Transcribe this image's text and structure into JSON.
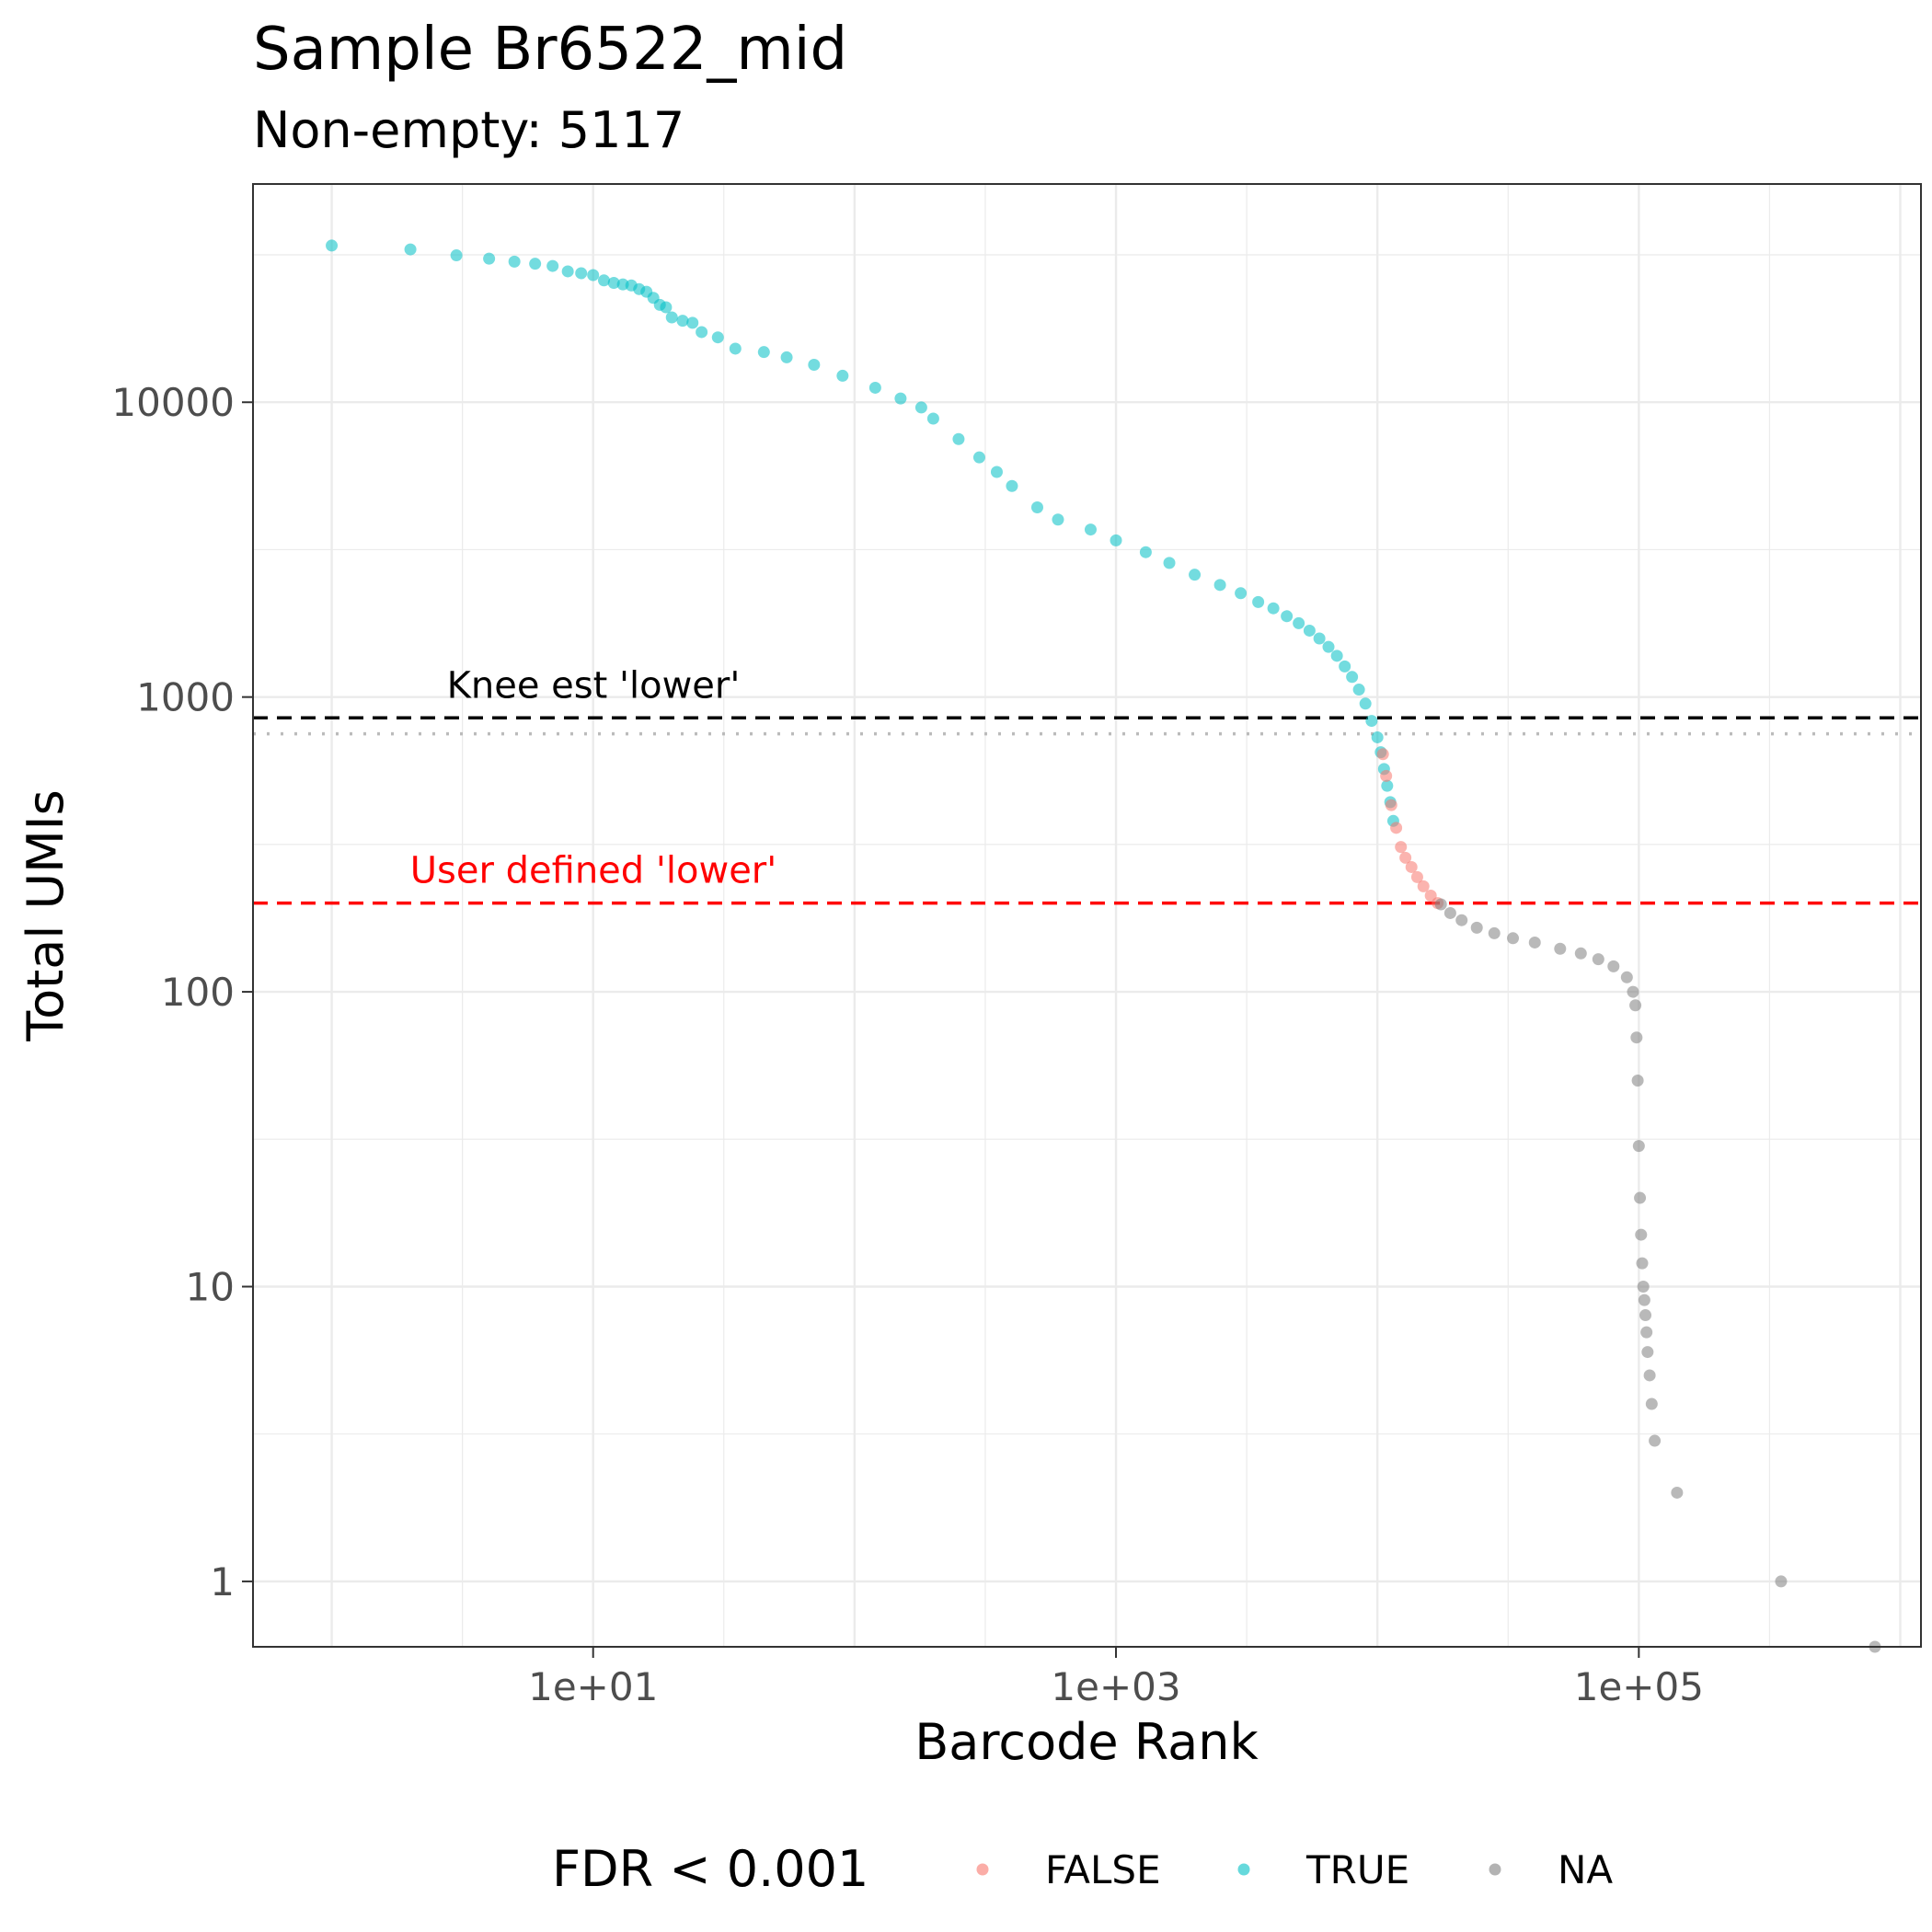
{
  "chart_data": {
    "type": "scatter",
    "title": "Sample Br6522_mid",
    "subtitle": "Non-empty: 5117",
    "xlabel": "Barcode Rank",
    "ylabel": "Total UMIs",
    "x_scale": "log10",
    "y_scale": "log10",
    "xlim": [
      0.5,
      1200000
    ],
    "ylim": [
      0.6,
      55000
    ],
    "x_ticks": [
      {
        "value": 10,
        "label": "1e+01"
      },
      {
        "value": 1000,
        "label": "1e+03"
      },
      {
        "value": 100000,
        "label": "1e+05"
      }
    ],
    "y_ticks": [
      {
        "value": 1,
        "label": "1"
      },
      {
        "value": 10,
        "label": "10"
      },
      {
        "value": 100,
        "label": "100"
      },
      {
        "value": 1000,
        "label": "1000"
      },
      {
        "value": 10000,
        "label": "10000"
      }
    ],
    "grid": true,
    "legend": {
      "title": "FDR < 0.001",
      "position": "bottom",
      "entries": [
        {
          "label": "FALSE",
          "color": "#F8766D"
        },
        {
          "label": "TRUE",
          "color": "#00BFC4"
        },
        {
          "label": "NA",
          "color": "#808080"
        }
      ]
    },
    "hlines": [
      {
        "y": 850,
        "color": "#000000",
        "style": "dashed",
        "label": "Knee est 'lower'"
      },
      {
        "y": 750,
        "color": "#bbbbbb",
        "style": "dotted",
        "label": ""
      },
      {
        "y": 200,
        "color": "#FF0000",
        "style": "dashed",
        "label": "User defined 'lower'"
      }
    ],
    "series": [
      {
        "fdr": "TRUE",
        "color": "#00BFC4",
        "points": [
          [
            1,
            34000
          ],
          [
            2,
            33000
          ],
          [
            3,
            31500
          ],
          [
            4,
            30700
          ],
          [
            5,
            30000
          ],
          [
            6,
            29500
          ],
          [
            7,
            29000
          ],
          [
            8,
            27800
          ],
          [
            9,
            27400
          ],
          [
            10,
            27000
          ],
          [
            11,
            25900
          ],
          [
            12,
            25400
          ],
          [
            13,
            25100
          ],
          [
            14,
            24900
          ],
          [
            15,
            24200
          ],
          [
            16,
            23700
          ],
          [
            17,
            22600
          ],
          [
            18,
            21400
          ],
          [
            19,
            21000
          ],
          [
            20,
            19400
          ],
          [
            22,
            18900
          ],
          [
            24,
            18600
          ],
          [
            26,
            17300
          ],
          [
            30,
            16600
          ],
          [
            35,
            15200
          ],
          [
            45,
            14800
          ],
          [
            55,
            14200
          ],
          [
            70,
            13400
          ],
          [
            90,
            12300
          ],
          [
            120,
            11200
          ],
          [
            150,
            10300
          ],
          [
            180,
            9600
          ],
          [
            200,
            8800
          ],
          [
            250,
            7500
          ],
          [
            300,
            6500
          ],
          [
            350,
            5800
          ],
          [
            400,
            5200
          ],
          [
            500,
            4400
          ],
          [
            600,
            4000
          ],
          [
            800,
            3700
          ],
          [
            1000,
            3400
          ],
          [
            1300,
            3100
          ],
          [
            1600,
            2850
          ],
          [
            2000,
            2600
          ],
          [
            2500,
            2400
          ],
          [
            3000,
            2250
          ],
          [
            3500,
            2100
          ],
          [
            4000,
            2000
          ],
          [
            4500,
            1880
          ],
          [
            5000,
            1780
          ],
          [
            5500,
            1680
          ],
          [
            6000,
            1580
          ],
          [
            6500,
            1480
          ],
          [
            7000,
            1380
          ],
          [
            7500,
            1270
          ],
          [
            8000,
            1170
          ],
          [
            8500,
            1060
          ],
          [
            9000,
            950
          ],
          [
            9500,
            830
          ],
          [
            10000,
            730
          ],
          [
            10300,
            650
          ],
          [
            10600,
            570
          ],
          [
            10900,
            500
          ],
          [
            11200,
            440
          ],
          [
            11500,
            380
          ]
        ]
      },
      {
        "fdr": "FALSE",
        "color": "#F8766D",
        "points": [
          [
            10500,
            640
          ],
          [
            10800,
            540
          ],
          [
            11300,
            430
          ],
          [
            11800,
            360
          ],
          [
            12300,
            310
          ],
          [
            12800,
            285
          ],
          [
            13500,
            265
          ],
          [
            14200,
            245
          ],
          [
            15000,
            228
          ],
          [
            16000,
            212
          ],
          [
            17000,
            200
          ]
        ]
      },
      {
        "fdr": "NA",
        "color": "#808080",
        "points": [
          [
            17500,
            198
          ],
          [
            19000,
            185
          ],
          [
            21000,
            175
          ],
          [
            24000,
            165
          ],
          [
            28000,
            158
          ],
          [
            33000,
            152
          ],
          [
            40000,
            147
          ],
          [
            50000,
            140
          ],
          [
            60000,
            135
          ],
          [
            70000,
            129
          ],
          [
            80000,
            122
          ],
          [
            90000,
            112
          ],
          [
            95000,
            100
          ],
          [
            97000,
            90
          ],
          [
            98000,
            70
          ],
          [
            99000,
            50
          ],
          [
            100000,
            30
          ],
          [
            101000,
            20
          ],
          [
            102000,
            15
          ],
          [
            103000,
            12
          ],
          [
            104000,
            10
          ],
          [
            105000,
            9
          ],
          [
            106000,
            8
          ],
          [
            107000,
            7
          ],
          [
            108000,
            6
          ],
          [
            110000,
            5
          ],
          [
            112000,
            4
          ],
          [
            115000,
            3
          ],
          [
            140000,
            2
          ],
          [
            350000,
            1
          ],
          [
            800000,
            0.6
          ]
        ]
      }
    ]
  }
}
